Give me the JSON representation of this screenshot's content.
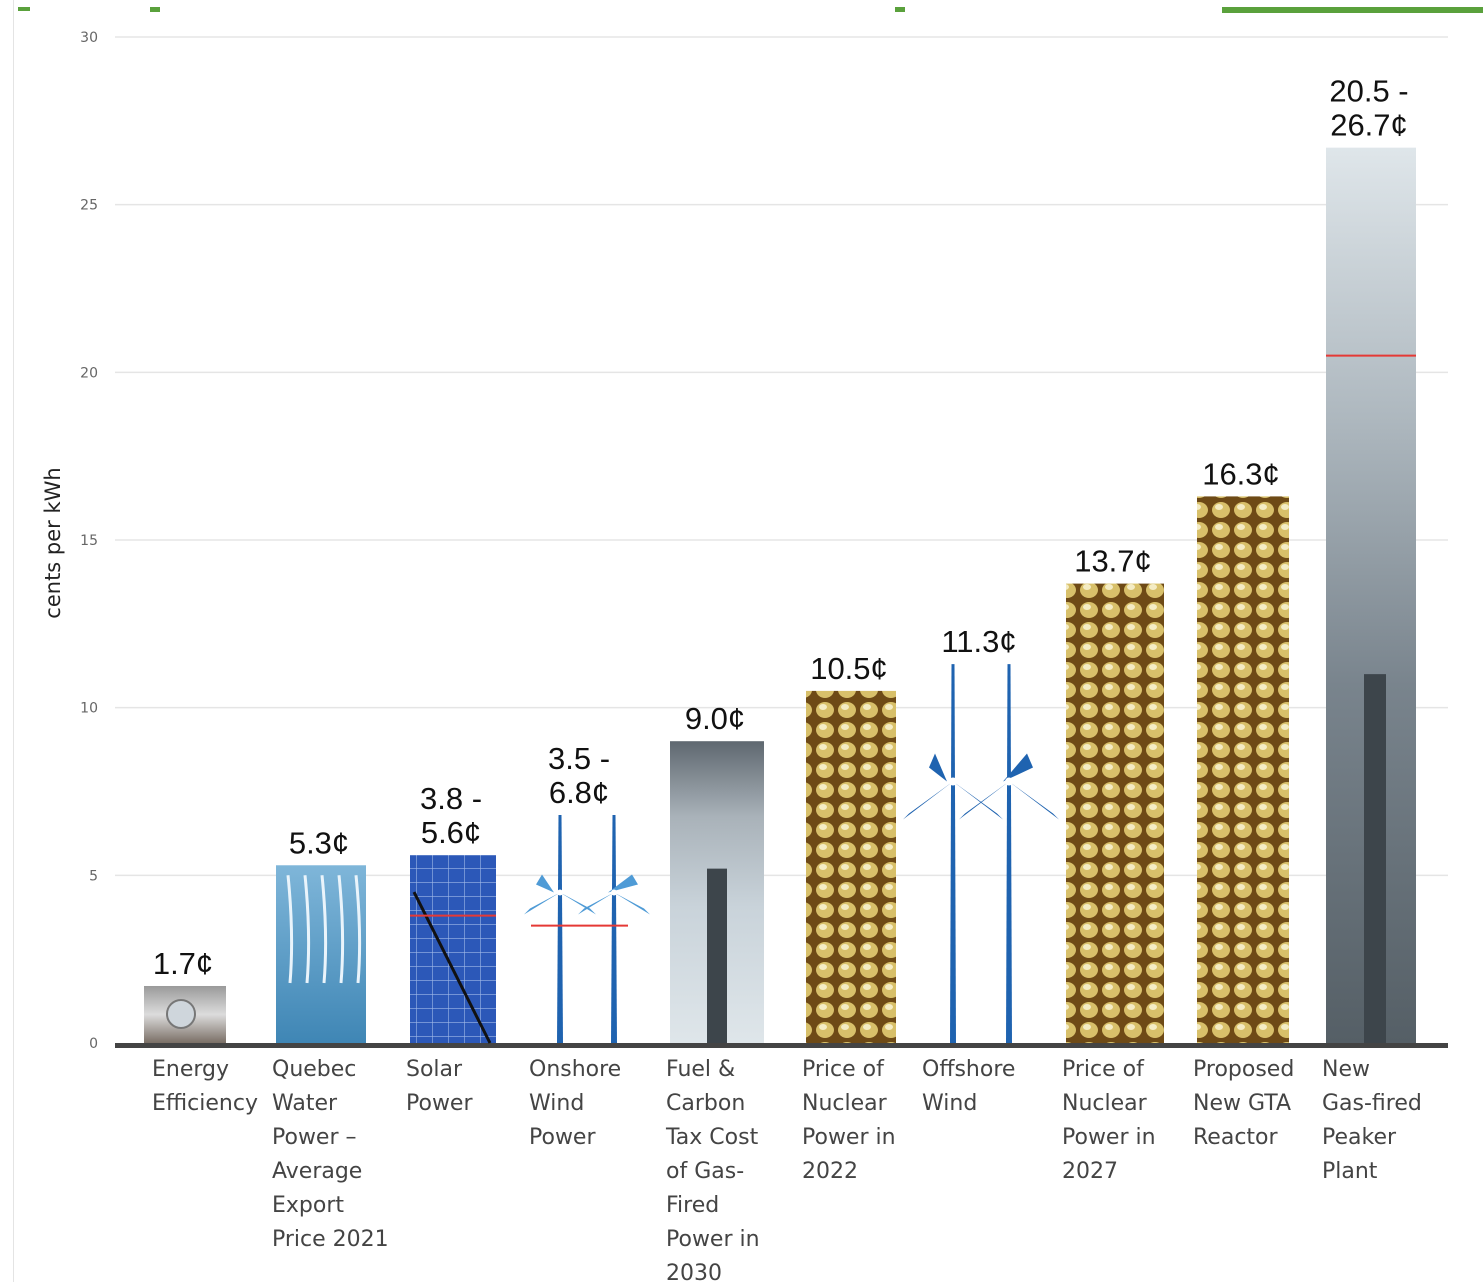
{
  "colors": {
    "grid": "#e5e5e5",
    "baseline": "#444444",
    "header_green": "#5aa13c",
    "range_marker": "#e53935",
    "wind_blue": "#1f63b0",
    "wind_light": "#4f9bd6",
    "water": "#4f93bf",
    "solar": "#2a55b3",
    "nuclear": "#c9a93a",
    "smoke": "#7d8790"
  },
  "chart_data": {
    "type": "bar",
    "title": "",
    "xlabel": "",
    "ylabel": "cents per kWh",
    "ylim": [
      0,
      30
    ],
    "yticks": [
      0,
      5,
      10,
      15,
      20,
      25,
      30
    ],
    "grid": true,
    "categories": [
      {
        "lines": [
          "Energy",
          "Efficiency"
        ],
        "icon": "light-bulb-icon"
      },
      {
        "lines": [
          "Quebec",
          "Water",
          "Power –",
          "Average",
          "Export",
          "Price 2021"
        ],
        "icon": "waterfall-icon"
      },
      {
        "lines": [
          "Solar",
          "Power"
        ],
        "icon": "solar-panel-icon"
      },
      {
        "lines": [
          "Onshore",
          "Wind",
          "Power"
        ],
        "icon": "wind-turbine-icon"
      },
      {
        "lines": [
          "Fuel &",
          "Carbon",
          "Tax Cost",
          "of Gas-",
          "Fired",
          "Power in",
          "2030"
        ],
        "icon": "smokestack-icon"
      },
      {
        "lines": [
          "Price of",
          "Nuclear",
          "Power in",
          "2022"
        ],
        "icon": "nuclear-fuel-icon"
      },
      {
        "lines": [
          "Offshore",
          "Wind"
        ],
        "icon": "wind-turbine-icon"
      },
      {
        "lines": [
          "Price of",
          "Nuclear",
          "Power in",
          "2027"
        ],
        "icon": "nuclear-fuel-icon"
      },
      {
        "lines": [
          "Proposed",
          "New GTA",
          "Reactor"
        ],
        "icon": "nuclear-fuel-icon"
      },
      {
        "lines": [
          "New",
          "Gas-fired",
          "Peaker",
          "Plant"
        ],
        "icon": "smokestack-icon"
      }
    ],
    "values": [
      1.7,
      5.3,
      [
        3.8,
        5.6
      ],
      [
        3.5,
        6.8
      ],
      9.0,
      10.5,
      11.3,
      13.7,
      16.3,
      [
        20.5,
        26.7
      ]
    ],
    "value_labels": [
      [
        "1.7¢"
      ],
      [
        "5.3¢"
      ],
      [
        "3.8 -",
        "5.6¢"
      ],
      [
        "3.5 -",
        "6.8¢"
      ],
      [
        "9.0¢"
      ],
      [
        "10.5¢"
      ],
      [
        "11.3¢"
      ],
      [
        "13.7¢"
      ],
      [
        "16.3¢"
      ],
      [
        "20.5 -",
        "26.7¢"
      ]
    ]
  }
}
